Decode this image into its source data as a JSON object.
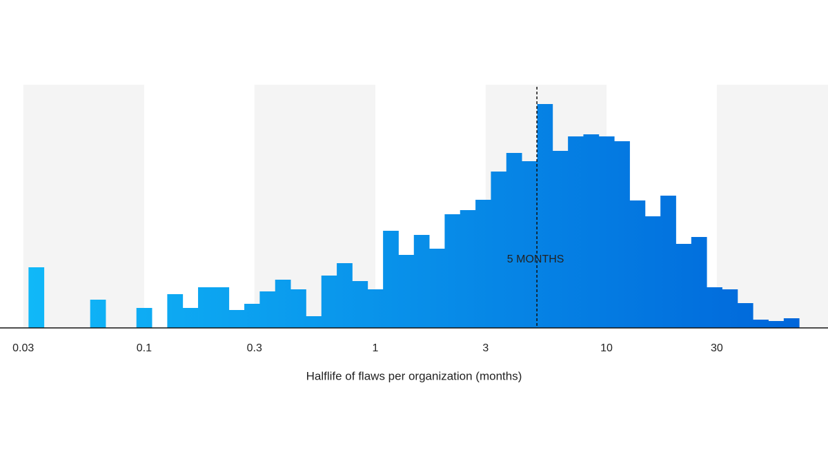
{
  "chart_data": {
    "type": "histogram",
    "xlabel": "Halflife of flaws per organization (months)",
    "xscale": "log",
    "xlim": [
      0.0238,
      90.8
    ],
    "xticks": [
      0.03,
      0.1,
      0.3,
      1,
      3,
      10,
      30
    ],
    "ylim": [
      0,
      353
    ],
    "shaded_bands": true,
    "color_start": "#10b8f8",
    "color_end": "#0066da",
    "bins": [
      0.03162,
      0.03687,
      0.04299,
      0.05012,
      0.05843,
      0.06813,
      0.07943,
      0.09261,
      0.108,
      0.1259,
      0.1468,
      0.1711,
      0.1995,
      0.2326,
      0.2712,
      0.3162,
      0.3687,
      0.4299,
      0.5012,
      0.5843,
      0.6813,
      0.7943,
      0.9261,
      1.08,
      1.259,
      1.468,
      1.711,
      1.995,
      2.326,
      2.712,
      3.162,
      3.687,
      4.299,
      5.012,
      5.843,
      6.813,
      7.943,
      9.261,
      10.8,
      12.59,
      14.68,
      17.11,
      19.95,
      23.26,
      27.12,
      31.62,
      36.87,
      42.99,
      50.12,
      58.43,
      68.13
    ],
    "counts": [
      88,
      0,
      0,
      0,
      41,
      0,
      0,
      29,
      0,
      49,
      29,
      59,
      59,
      26,
      35,
      53,
      70,
      56,
      17,
      76,
      94,
      68,
      56,
      141,
      106,
      135,
      115,
      165,
      171,
      186,
      227,
      254,
      242,
      325,
      257,
      278,
      281,
      278,
      271,
      185,
      162,
      192,
      122,
      132,
      59,
      56,
      36,
      12,
      10,
      14
    ],
    "annotation": {
      "value": 5,
      "label": "5 MONTHS"
    }
  }
}
